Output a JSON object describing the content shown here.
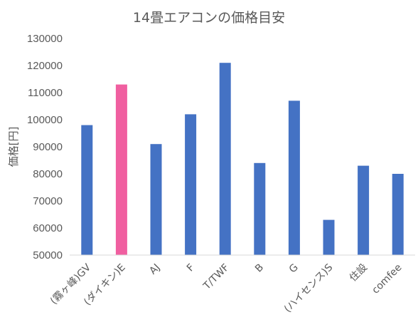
{
  "chart_data": {
    "type": "bar",
    "title": "14畳エアコンの価格目安",
    "xlabel": "",
    "ylabel": "価格[円]",
    "ylim": [
      50000,
      130000
    ],
    "ytick_step": 10000,
    "yticks": [
      "50000",
      "60000",
      "70000",
      "80000",
      "90000",
      "100000",
      "110000",
      "120000",
      "130000"
    ],
    "grid": false,
    "legend": "none",
    "categories": [
      "(霧ヶ峰)GV",
      "(ダイキン)E",
      "AJ",
      "F",
      "T/TWF",
      "B",
      "G",
      "(ハイセンス)S",
      "住設",
      "comfee"
    ],
    "values": [
      98000,
      113000,
      91000,
      102000,
      121000,
      84000,
      107000,
      63000,
      83000,
      80000
    ],
    "colors": {
      "default": "#4472C4",
      "highlight": "#F05FA0",
      "highlight_index": 1,
      "axis": "#D9D9D9",
      "text": "#595959"
    }
  }
}
